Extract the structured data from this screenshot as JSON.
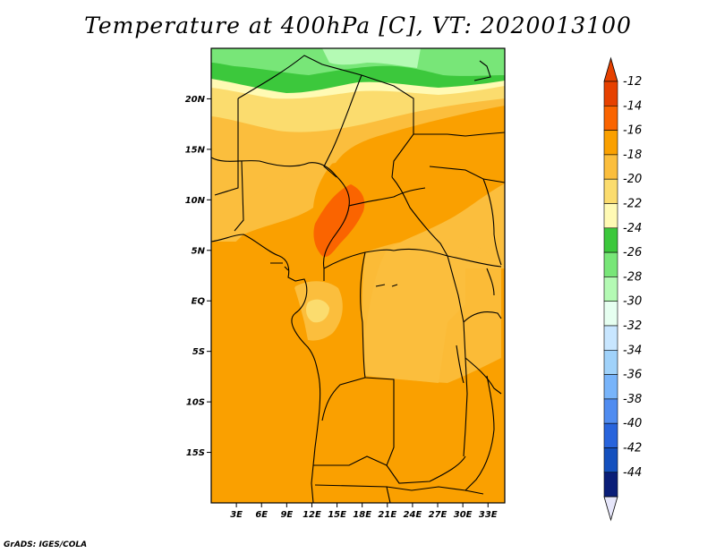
{
  "title": "Temperature at 400hPa [C], VT: 2020013100",
  "footer": "GrADS: IGES/COLA",
  "map": {
    "lat_labels": [
      {
        "label": "20N",
        "lat": 20
      },
      {
        "label": "15N",
        "lat": 15
      },
      {
        "label": "10N",
        "lat": 10
      },
      {
        "label": "5N",
        "lat": 5
      },
      {
        "label": "EQ",
        "lat": 0
      },
      {
        "label": "5S",
        "lat": -5
      },
      {
        "label": "10S",
        "lat": -10
      },
      {
        "label": "15S",
        "lat": -15
      }
    ],
    "lon_labels": [
      {
        "label": "3E",
        "lon": 3
      },
      {
        "label": "6E",
        "lon": 6
      },
      {
        "label": "9E",
        "lon": 9
      },
      {
        "label": "12E",
        "lon": 12
      },
      {
        "label": "15E",
        "lon": 15
      },
      {
        "label": "18E",
        "lon": 18
      },
      {
        "label": "21E",
        "lon": 21
      },
      {
        "label": "24E",
        "lon": 24
      },
      {
        "label": "27E",
        "lon": 27
      },
      {
        "label": "30E",
        "lon": 30
      },
      {
        "label": "33E",
        "lon": 33
      }
    ],
    "lon_range": [
      0,
      35
    ],
    "lat_range": [
      -20,
      25
    ],
    "base_color": "#faa000"
  },
  "colorbar": {
    "items": [
      {
        "label": "-12",
        "color": "#e64100"
      },
      {
        "label": "-14",
        "color": "#fa6400"
      },
      {
        "label": "-16",
        "color": "#faa000"
      },
      {
        "label": "-18",
        "color": "#fbbe3d"
      },
      {
        "label": "-20",
        "color": "#fbdc6e"
      },
      {
        "label": "-22",
        "color": "#fffab4"
      },
      {
        "label": "-24",
        "color": "#3cc83c"
      },
      {
        "label": "-26",
        "color": "#78e678"
      },
      {
        "label": "-28",
        "color": "#b4fab4"
      },
      {
        "label": "-30",
        "color": "#e6fff0"
      },
      {
        "label": "-32",
        "color": "#c8e6ff"
      },
      {
        "label": "-34",
        "color": "#a0d2fa"
      },
      {
        "label": "-36",
        "color": "#78b4fa"
      },
      {
        "label": "-38",
        "color": "#508cf0"
      },
      {
        "label": "-40",
        "color": "#2864dc"
      },
      {
        "label": "-42",
        "color": "#1450be"
      },
      {
        "label": "-44",
        "color": "#0a1e78"
      }
    ],
    "top_arrow_color": "#e64100",
    "bottom_arrow_color": "#e6e6fa"
  }
}
